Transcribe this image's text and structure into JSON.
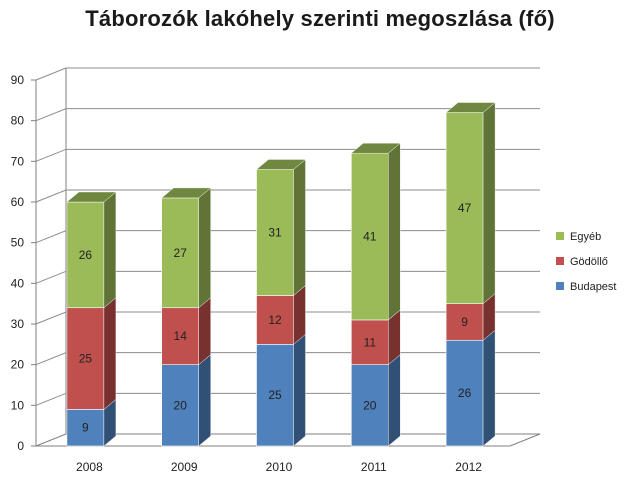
{
  "chart_data": {
    "type": "bar",
    "stacked": true,
    "three_d": true,
    "title": "Táborozók lakóhely szerinti megoszlása (fő)",
    "categories": [
      "2008",
      "2009",
      "2010",
      "2011",
      "2012"
    ],
    "series": [
      {
        "name": "Budapest",
        "values": [
          9,
          20,
          25,
          20,
          26
        ],
        "color": "#4f81bd"
      },
      {
        "name": "Gödöllő",
        "values": [
          25,
          14,
          12,
          11,
          9
        ],
        "color": "#c0504d"
      },
      {
        "name": "Egyéb",
        "values": [
          26,
          27,
          31,
          41,
          47
        ],
        "color": "#9bbb59"
      }
    ],
    "ylim": [
      0,
      90
    ],
    "yticks": [
      "0",
      "10",
      "20",
      "30",
      "40",
      "50",
      "60",
      "70",
      "80",
      "90"
    ],
    "grid": true,
    "legend_position": "right"
  }
}
